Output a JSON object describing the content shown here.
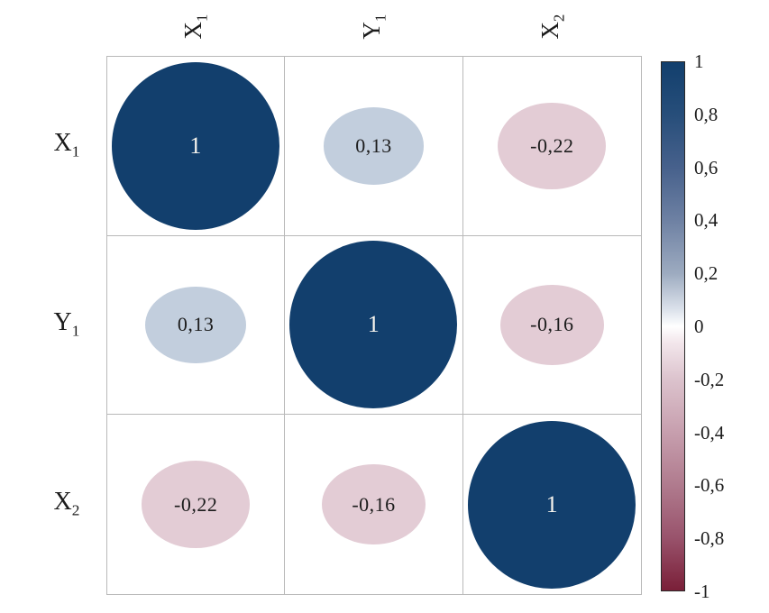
{
  "figure": {
    "type": "correlation-matrix-plot",
    "background": "#ffffff"
  },
  "chart_data": {
    "type": "heatmap",
    "title": "",
    "variables": [
      {
        "base": "X",
        "sub": "1"
      },
      {
        "base": "Y",
        "sub": "1"
      },
      {
        "base": "X",
        "sub": "2"
      }
    ],
    "matrix": [
      [
        1,
        0.13,
        -0.22
      ],
      [
        0.13,
        1,
        -0.16
      ],
      [
        -0.22,
        -0.16,
        1
      ]
    ],
    "cell_labels": [
      [
        "1",
        "0,13",
        "-0,22"
      ],
      [
        "0,13",
        "1",
        "-0,16"
      ],
      [
        "-0,22",
        "-0,16",
        "1"
      ]
    ],
    "cell_colors": [
      [
        "#123f6d",
        "#c2cedd",
        "#e3ccd5"
      ],
      [
        "#c2cedd",
        "#123f6d",
        "#e3ccd5"
      ],
      [
        "#e3ccd5",
        "#e3ccd5",
        "#123f6d"
      ]
    ],
    "colorbar": {
      "ticks": [
        "1",
        "0,8",
        "0,6",
        "0,4",
        "0,2",
        "0",
        "-0,2",
        "-0,4",
        "-0,6",
        "-0,8",
        "-1"
      ],
      "range": [
        1,
        -1
      ],
      "top_color": "#123f6d",
      "mid_color": "#ffffff",
      "bottom_color": "#7a1f38",
      "legend_position": "right"
    },
    "grid": "on",
    "grid_line_color": "#b9b9b9",
    "value_text_dark": "#1c1c1c",
    "value_text_light": "#f8f5ee"
  }
}
